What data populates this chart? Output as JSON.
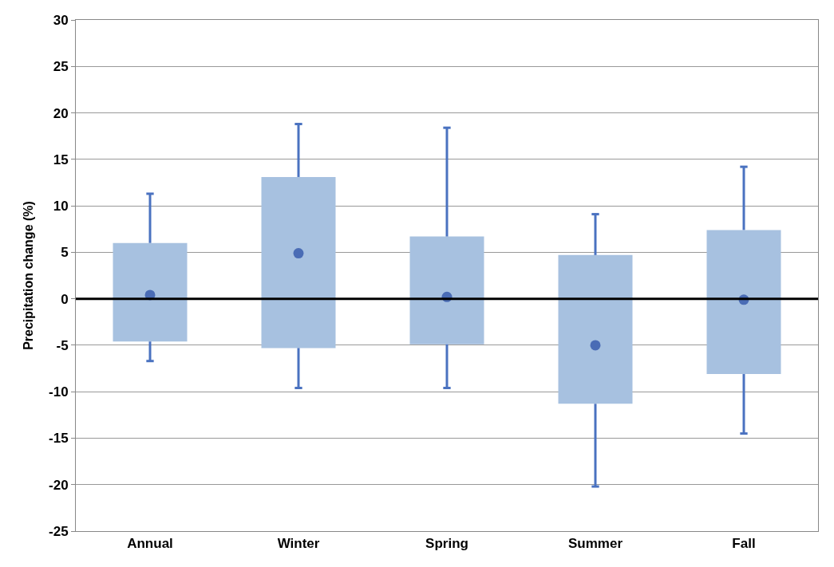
{
  "chart_data": {
    "type": "box",
    "ylabel": "Precipitation change (%)",
    "categories": [
      "Annual",
      "Winter",
      "Spring",
      "Summer",
      "Fall"
    ],
    "series": [
      {
        "color": "#a7c1e0",
        "boxes": [
          {
            "low": -6.7,
            "q1": -4.6,
            "median": 0.4,
            "q3": 6.0,
            "high": 11.3
          },
          {
            "low": -9.6,
            "q1": -5.3,
            "median": 4.9,
            "q3": 13.1,
            "high": 18.8
          },
          {
            "low": -9.6,
            "q1": -4.9,
            "median": 0.2,
            "q3": 6.7,
            "high": 18.4
          },
          {
            "low": -20.2,
            "q1": -11.3,
            "median": -5.0,
            "q3": 4.7,
            "high": 9.1
          },
          {
            "low": -14.5,
            "q1": -8.1,
            "median": -0.1,
            "q3": 7.4,
            "high": 14.2
          }
        ]
      }
    ],
    "ylim": [
      -25,
      30
    ],
    "yticks": [
      -25,
      -20,
      -15,
      -10,
      -5,
      0,
      5,
      10,
      15,
      20,
      25,
      30
    ],
    "grid": "y",
    "ref_lines": [
      {
        "axis": "y",
        "value": 0,
        "color": "#000000"
      }
    ]
  }
}
